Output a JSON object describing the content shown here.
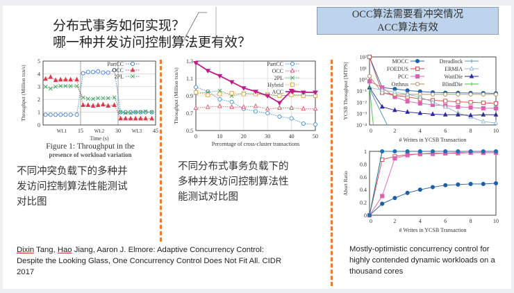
{
  "slide": {
    "title_lines": [
      "分布式事务如何实现？",
      "哪一种并发访问控制算法更有效？"
    ],
    "callout_lines": [
      "OCC算法需要看冲突情况",
      "ACC算法有效"
    ],
    "left_caption_lines": [
      "Figure 1: Throughput in the",
      "presence of workload variation"
    ],
    "left_desc": [
      "不同冲突负载下的多种并",
      "发访问控制算法性能测试",
      "对比图"
    ],
    "middle_desc": [
      "不同分布式事务负载下的",
      "多种并发访问控制算法性",
      "能测试对比图"
    ],
    "citation_left": {
      "authors": [
        "Dixin",
        "Tang,",
        "Hao",
        "Jiang, Aaron J. Elmore: Adaptive Concurrency Control:"
      ],
      "line2": "Despite the Looking Glass, One Concurrency Control Does Not Fit All. CIDR",
      "line3": "2017"
    },
    "citation_right": [
      "Mostly-optimistic concurrency control for",
      "highly contended dynamic workloads on a",
      "thousand cores"
    ]
  },
  "chart_data": [
    {
      "type": "line",
      "title": "",
      "xlabel": "Time (s)",
      "ylabel": "Throughput (Million txn/s)",
      "xlim": [
        0,
        45
      ],
      "ylim": [
        0,
        5
      ],
      "xticks": [
        15,
        30,
        45
      ],
      "xtick_labels": [
        "15",
        "30",
        "45"
      ],
      "yticks": [
        0,
        1,
        2,
        3,
        4,
        5
      ],
      "ytick_labels": [
        "0",
        "1",
        "2",
        "3",
        "4",
        "5"
      ],
      "annotations": [
        {
          "x": 7.5,
          "text": "WL1"
        },
        {
          "x": 22.5,
          "text": "WL2"
        },
        {
          "x": 37.5,
          "text": "WL3"
        }
      ],
      "vlines": [
        15,
        30
      ],
      "grid": true,
      "legend": "top-right",
      "x": [
        1,
        3,
        5,
        7,
        9,
        11,
        13.5,
        16,
        18,
        20,
        22,
        24,
        26,
        28.5,
        31,
        33,
        35,
        37,
        39,
        41,
        43.5
      ],
      "series": [
        {
          "name": "PartCC",
          "color": "#3b7dd8",
          "marker": "circle",
          "values": [
            0.8,
            0.8,
            0.8,
            0.8,
            0.8,
            0.8,
            0.8,
            4.05,
            4.15,
            4.15,
            4.2,
            4.1,
            4.1,
            4.3,
            1,
            1,
            1,
            1,
            1,
            1,
            1
          ]
        },
        {
          "name": "OCC",
          "color": "#e0394a",
          "marker": "triangle-filled",
          "values": [
            3.6,
            3.75,
            3.5,
            3.55,
            3.55,
            3.55,
            3.55,
            1.55,
            1.55,
            1.5,
            1.55,
            1.6,
            1.5,
            1.55,
            0.5,
            0.5,
            0.5,
            0.5,
            0.5,
            0.5,
            0.5
          ]
        },
        {
          "name": "2PL",
          "color": "#3aa25a",
          "marker": "x",
          "values": [
            3.0,
            2.85,
            3.0,
            3.05,
            3.05,
            3.05,
            3.05,
            2.15,
            2.05,
            2.05,
            2.1,
            2.1,
            2.1,
            2.15,
            1,
            0.95,
            0.95,
            1,
            1,
            1.05,
            1
          ]
        }
      ]
    },
    {
      "type": "line",
      "title": "",
      "xlabel": "Percentage of cross-cluster transactions",
      "ylabel": "Throughput (Million txn/s)",
      "xlim": [
        0,
        50
      ],
      "ylim": [
        0.5,
        1.3
      ],
      "xticks": [
        0,
        10,
        20,
        30,
        40,
        50
      ],
      "xtick_labels": [
        "0",
        "10",
        "20",
        "30",
        "40",
        "50"
      ],
      "yticks": [
        0.5,
        0.7,
        0.9,
        1.1,
        1.3
      ],
      "ytick_labels": [
        "0.5",
        "0.7",
        "0.9",
        "1.1",
        "1.3"
      ],
      "grid": true,
      "legend": "top-right",
      "x": [
        0,
        5,
        10,
        15,
        20,
        25,
        30,
        35,
        40,
        45,
        50
      ],
      "series": [
        {
          "name": "PartCC",
          "color": "#3b8fd8",
          "marker": "circle",
          "values": [
            1.0,
            0.95,
            0.86,
            0.83,
            0.75,
            0.72,
            0.7,
            0.66,
            0.64,
            0.58,
            0.57
          ]
        },
        {
          "name": "OCC",
          "color": "#e05060",
          "marker": "triangle",
          "values": [
            0.76,
            0.77,
            0.78,
            0.77,
            0.77,
            0.78,
            0.75,
            0.76,
            0.76,
            0.75,
            0.75
          ]
        },
        {
          "name": "2PL",
          "color": "#3aa25a",
          "marker": "x",
          "values": [
            0.93,
            0.94,
            0.96,
            0.9,
            0.93,
            0.92,
            0.92,
            0.9,
            0.91,
            0.91,
            0.9
          ]
        },
        {
          "name": "Hybrid",
          "color": "#e8a030",
          "marker": "square",
          "values": [
            0.94,
            0.91,
            0.92,
            0.93,
            0.92,
            0.92,
            0.91,
            0.9,
            0.91,
            0.9,
            0.9
          ]
        },
        {
          "name": "ACC",
          "color": "#c01a8a",
          "marker": "invtriangle-filled",
          "solid": true,
          "values": [
            1.28,
            1.19,
            1.13,
            1.06,
            0.99,
            0.95,
            0.9,
            0.82,
            0.96,
            0.94,
            0.94
          ]
        }
      ]
    },
    {
      "type": "line",
      "title": "",
      "xlabel": "# Writes in YCSB Transaction",
      "ylabel": "YCSB Throughput [MTPS]",
      "xlim": [
        0,
        10
      ],
      "ylim": [
        0.0001,
        100
      ],
      "yscale": "log",
      "xticks": [
        0,
        2,
        4,
        6,
        8,
        10
      ],
      "xtick_labels": [
        "0",
        "2",
        "4",
        "6",
        "8",
        "10"
      ],
      "yticks": [
        100,
        10,
        1,
        0.1,
        0.01,
        0.001,
        0.0001
      ],
      "ytick_labels": [
        "10²",
        "10¹",
        "10⁰",
        "10⁻¹",
        "10⁻²",
        "10⁻³",
        "10⁻⁴"
      ],
      "grid": false,
      "legend": "top-right",
      "legend_columns": 2,
      "series": [
        {
          "name": "MOCC",
          "color": "#1f5fa8",
          "marker": "circle-filled",
          "x": [
            0,
            1,
            2,
            3,
            4,
            5,
            6,
            7,
            8,
            9,
            10
          ],
          "values": [
            100,
            0.2,
            0.15,
            0.11,
            0.09,
            0.075,
            0.07,
            0.068,
            0.066,
            0.065,
            0.062
          ]
        },
        {
          "name": "FOEDUS",
          "color": "#d04040",
          "marker": "square",
          "x": [
            0,
            1,
            2,
            3,
            4,
            5,
            6,
            7,
            8,
            9,
            10
          ],
          "values": [
            100,
            0.07,
            0.04,
            0.03,
            0.02,
            0.015,
            0.013,
            0.011,
            0.01,
            0.009,
            0.008
          ]
        },
        {
          "name": "PCC",
          "color": "#e060b0",
          "marker": "square-filled",
          "x": [
            0,
            1,
            2,
            3,
            4,
            5,
            6,
            7,
            8,
            9,
            10
          ],
          "values": [
            0.7,
            0.2,
            0.03,
            0.012,
            0.008,
            0.006,
            0.005,
            0.004,
            0.0035,
            0.003,
            0.003
          ]
        },
        {
          "name": "Orthrus",
          "color": "#b08a50",
          "marker": "circle",
          "x": [
            0,
            1,
            2,
            3,
            4,
            5,
            6,
            7,
            8,
            9,
            10
          ],
          "values": [
            2,
            0.07,
            0.05,
            0.05,
            0.05,
            0.05,
            0.05,
            0.05,
            0.05,
            0.05,
            0.05
          ]
        },
        {
          "name": "Dreadlock",
          "color": "#4a90c8",
          "marker": "plus",
          "x": [
            0,
            1.4
          ],
          "values": [
            0.15,
            0.0001
          ]
        },
        {
          "name": "ERMIA",
          "color": "#8fb8d0",
          "marker": "triangle",
          "x": [
            0,
            1,
            2,
            3,
            4,
            5,
            6,
            7,
            8,
            9,
            10
          ],
          "values": [
            0.2,
            0.12,
            0.08,
            0.05,
            0.03,
            0.01,
            0.004,
            0.0012,
            0.0005,
            0.0002,
            0.00015
          ]
        },
        {
          "name": "WaitDie",
          "color": "#2a2aa8",
          "marker": "triangle-filled",
          "x": [
            0,
            1,
            2,
            3,
            4,
            5,
            6,
            7,
            8,
            9,
            10
          ],
          "values": [
            0.2,
            0.004,
            0.002,
            0.0014,
            0.0011,
            0.0009,
            0.0008,
            0.0008,
            0.0007,
            0.0008,
            0.0008
          ]
        },
        {
          "name": "BlindDie",
          "color": "#40c040",
          "marker": "plus",
          "x": [
            0,
            0.3
          ],
          "values": [
            0.2,
            0.0001
          ]
        }
      ]
    },
    {
      "type": "line",
      "title": "",
      "xlabel": "# Writes in YCSB Transaction",
      "ylabel": "Abort Ratio",
      "xlim": [
        0,
        10
      ],
      "ylim": [
        0,
        1
      ],
      "xticks": [
        0,
        2,
        4,
        6,
        8,
        10
      ],
      "xtick_labels": [
        "0",
        "2",
        "4",
        "6",
        "8",
        "10"
      ],
      "yticks": [
        0,
        0.2,
        0.4,
        0.6,
        0.8,
        1
      ],
      "ytick_labels": [
        "0",
        "0.2",
        "0.4",
        "0.6",
        "0.8",
        "1"
      ],
      "grid": false,
      "legend": "none",
      "series": [
        {
          "name": "MOCC",
          "color": "#1f5fa8",
          "marker": "circle-filled",
          "x": [
            0,
            1,
            2,
            3,
            4,
            5,
            6,
            7,
            8,
            9,
            10
          ],
          "values": [
            0,
            0.18,
            0.27,
            0.35,
            0.4,
            0.44,
            0.47,
            0.48,
            0.49,
            0.49,
            0.5
          ]
        },
        {
          "name": "FOEDUS",
          "color": "#d04040",
          "marker": "square",
          "x": [
            0,
            1,
            2,
            3,
            4,
            5,
            6,
            7,
            8,
            9,
            10
          ],
          "values": [
            0,
            0.87,
            0.92,
            0.95,
            0.96,
            0.97,
            0.97,
            0.98,
            0.98,
            0.98,
            0.98
          ]
        },
        {
          "name": "PCC",
          "color": "#e060b0",
          "marker": "square-filled",
          "x": [
            0,
            1,
            2,
            3,
            4,
            5,
            6,
            7,
            8,
            9,
            10
          ],
          "values": [
            0,
            0.3,
            0.89,
            0.94,
            0.96,
            0.96,
            0.97,
            0.97,
            0.98,
            0.98,
            0.98
          ]
        },
        {
          "name": "BlindDie",
          "color": "#40c040",
          "marker": "none",
          "x": [
            0,
            1,
            2,
            3,
            4,
            5,
            6,
            7,
            8,
            9,
            10
          ],
          "values": [
            0,
            1,
            1,
            1,
            1,
            1,
            1,
            1,
            1,
            1,
            1
          ]
        },
        {
          "name": "Dreadlock",
          "color": "#1f6fb8",
          "marker": "circle-filled",
          "x": [
            0,
            1,
            2,
            3,
            4,
            5,
            6,
            7,
            8,
            9,
            10
          ],
          "values": [
            0,
            1,
            1,
            1,
            1,
            1,
            1,
            1,
            1,
            1,
            1
          ]
        }
      ]
    }
  ]
}
